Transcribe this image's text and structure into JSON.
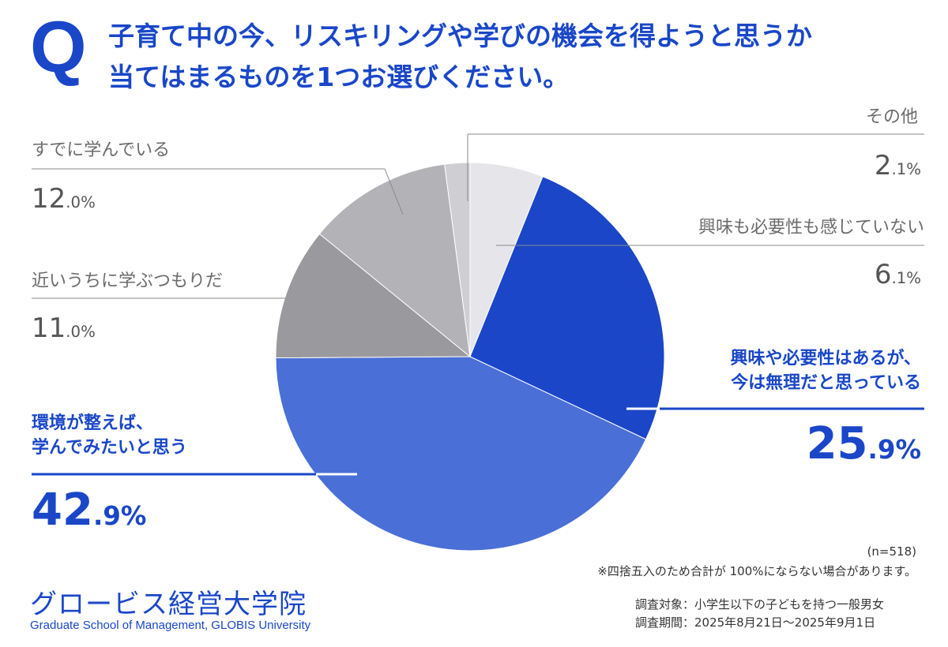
{
  "question": {
    "mark": "Q",
    "line1": "子育て中の今、リスキリングや学びの機会を得ようと思うか",
    "line2": "当てはまるものを1つお選びください。"
  },
  "chart_data": {
    "type": "pie",
    "title": "子育て中の今、リスキリングや学びの機会を得ようと思うか 当てはまるものを1つお選びください。",
    "slices": [
      {
        "label": "興味も必要性も感じていない",
        "value": 6.1,
        "color": "#e6e6ea"
      },
      {
        "label": "興味や必要性はあるが、今は無理だと思っている",
        "value": 25.9,
        "color": "#1b46c8"
      },
      {
        "label": "環境が整えば、学んでみたいと思う",
        "value": 42.9,
        "color": "#4a6fd6"
      },
      {
        "label": "近いうちに学ぶつもりだ",
        "value": 11.0,
        "color": "#9a999d"
      },
      {
        "label": "すでに学んでいる",
        "value": 12.0,
        "color": "#b3b2b6"
      },
      {
        "label": "その他",
        "value": 2.1,
        "color": "#cfcfd3"
      }
    ]
  },
  "labels": {
    "other": {
      "name": "その他",
      "num": "2",
      "pct": ".1%"
    },
    "no_interest": {
      "name": "興味も必要性も感じていない",
      "num": "6",
      "pct": ".1%"
    },
    "interest_not_now": {
      "name1": "興味や必要性はあるが、",
      "name2": "今は無理だと思っている",
      "num": "25",
      "pct": ".9%"
    },
    "if_env": {
      "name1": "環境が整えば、",
      "name2": "学んでみたいと思う",
      "num": "42",
      "pct": ".9%"
    },
    "soon": {
      "name": "近いうちに学ぶつもりだ",
      "num": "11",
      "pct": ".0%"
    },
    "already": {
      "name": "すでに学んでいる",
      "num": "12",
      "pct": ".0%"
    }
  },
  "notes": {
    "n": "(n=518)",
    "rounding": "※四捨五入のため合計が 100%にならない場合があります。",
    "target": "調査対象：小学生以下の子どもを持つ一般男女",
    "period": "調査期間：2025年8月21日～2025年9月1日"
  },
  "logo": {
    "jp": "グロービス経営大学院",
    "en": "Graduate School of Management, GLOBIS University"
  }
}
